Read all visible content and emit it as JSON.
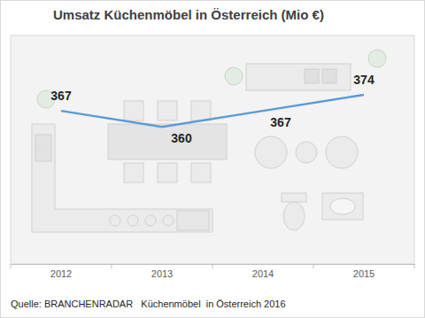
{
  "chart_data": {
    "type": "line",
    "title": "Umsatz Küchenmöbel in Österreich (Mio €)",
    "categories": [
      "2012",
      "2013",
      "2014",
      "2015"
    ],
    "values": [
      367,
      360,
      367,
      374
    ],
    "color": "#5b9bd5",
    "ylim": [
      300,
      400
    ],
    "data_labels": true,
    "tick_labels": "x",
    "annotations": [
      "Quelle: BRANCHENRADAR   Küchenmöbel  in Österreich 2016"
    ]
  }
}
